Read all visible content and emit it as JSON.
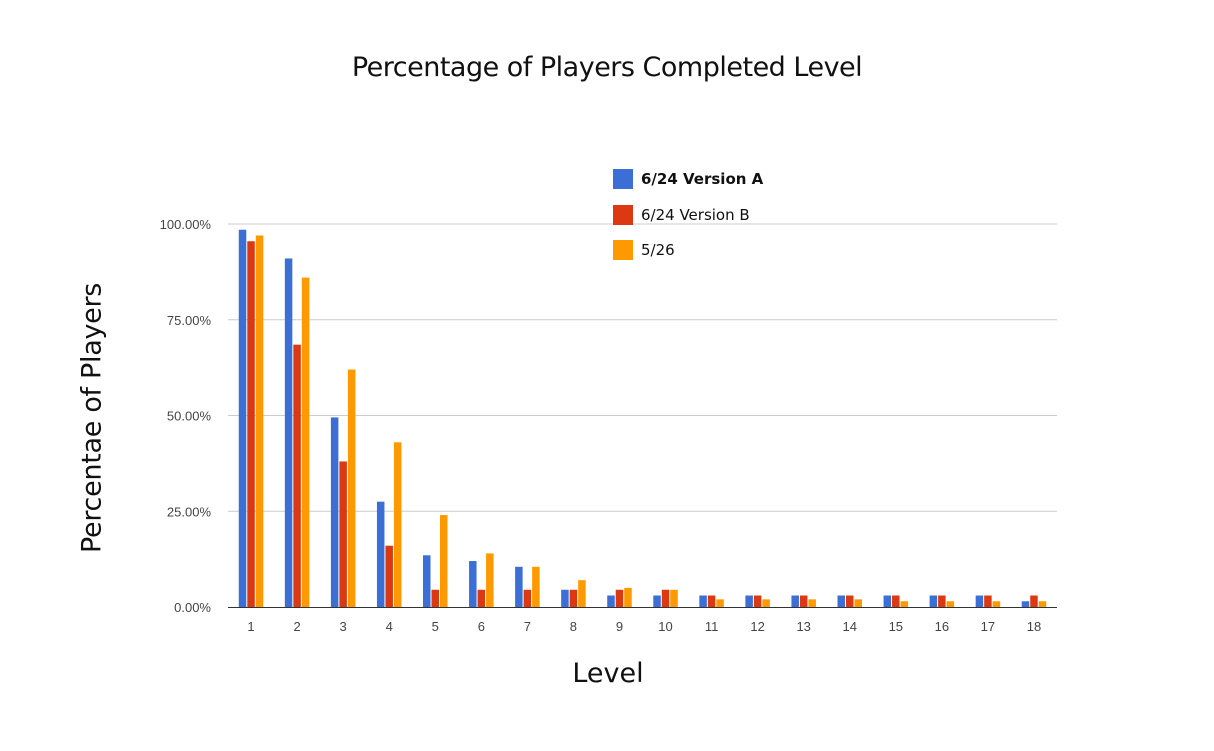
{
  "chart_data": {
    "type": "bar",
    "title": "Percentage of Players Completed Level",
    "xlabel": "Level",
    "ylabel": "Percentae of Players",
    "categories": [
      "1",
      "2",
      "3",
      "4",
      "5",
      "6",
      "7",
      "8",
      "9",
      "10",
      "11",
      "12",
      "13",
      "14",
      "15",
      "16",
      "17",
      "18"
    ],
    "yticks": [
      "0.00%",
      "25.00%",
      "50.00%",
      "75.00%",
      "100.00%"
    ],
    "ylim": [
      0,
      100
    ],
    "grid": true,
    "legend_position": "top-right",
    "series": [
      {
        "name": "6/24 Version A",
        "color": "#3c6fd6",
        "values": [
          98.5,
          91,
          49.5,
          27.5,
          13.5,
          12,
          10.5,
          4.5,
          3,
          3,
          3,
          3,
          3,
          3,
          3,
          3,
          3,
          1.5
        ]
      },
      {
        "name": "6/24 Version B",
        "color": "#dc3912",
        "values": [
          95.5,
          68.5,
          38,
          16,
          4.5,
          4.5,
          4.5,
          4.5,
          4.5,
          4.5,
          3,
          3,
          3,
          3,
          3,
          3,
          3,
          3
        ]
      },
      {
        "name": "5/26",
        "color": "#ff9900",
        "values": [
          97,
          86,
          62,
          43,
          24,
          14,
          10.5,
          7,
          5,
          4.5,
          2,
          2,
          2,
          2,
          1.5,
          1.5,
          1.5,
          1.5
        ]
      }
    ]
  }
}
